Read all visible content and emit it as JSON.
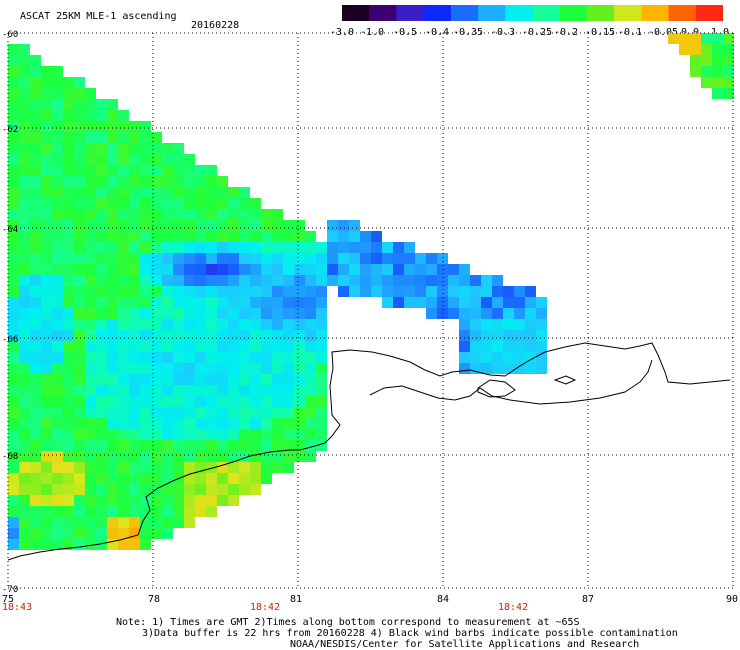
{
  "header": {
    "title": "ASCAT 25KM MLE-1 ascending",
    "date": "20160228"
  },
  "colorbar": {
    "labels": [
      "-3.0",
      "-1.0",
      "-0.5",
      "-0.4",
      "-0.35",
      "-0.3",
      "-0.25",
      "-0.2",
      "-0.15",
      "-0.1",
      "-0.05",
      "0.0",
      "1.0"
    ],
    "colors": [
      "#1a0020",
      "#3c0070",
      "#3a1ec8",
      "#0a28ff",
      "#1a6cff",
      "#1ab0ff",
      "#00f0f0",
      "#14ff9c",
      "#1eff3c",
      "#64f01e",
      "#d2e61e",
      "#ffb400",
      "#ff6400",
      "#ff2814"
    ]
  },
  "map": {
    "lon_min": 75,
    "lon_max": 90,
    "lat_min": -70,
    "lat_max": -60,
    "x_ticks": [
      "75",
      "78",
      "81",
      "84",
      "87",
      "90"
    ],
    "y_ticks": [
      "-60",
      "-62",
      "-64",
      "-66",
      "-68",
      "-70"
    ],
    "pass_times": [
      "18:43",
      "18:42",
      "18:42"
    ]
  },
  "notes": {
    "line1": "Note: 1) Times are GMT 2)Times along bottom correspond to measurement at ~65S",
    "line2": "3)Data buffer is 22 hrs from 20160228 4) Black wind barbs indicate possible contamination",
    "line3": "NOAA/NESDIS/Center for Satellite Applications and Research"
  }
}
